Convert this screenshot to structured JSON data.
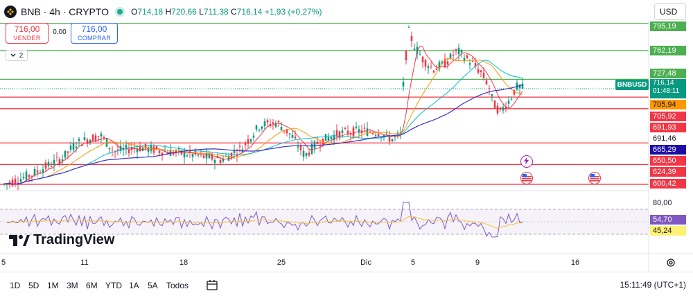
{
  "header": {
    "title": "BNB · 4h · CRYPTO",
    "ohlc": {
      "open_label": "O",
      "open": "714,18",
      "high_label": "H",
      "high": "720,66",
      "low_label": "L",
      "low": "711,38",
      "close_label": "C",
      "close": "716,14",
      "change": "+1,93 (+0,27%)"
    },
    "currency": "USD",
    "colors": {
      "up": "#089981",
      "down": "#f23645"
    }
  },
  "trade": {
    "sell_price": "716,00",
    "sell_label": "VENDER",
    "spread": "0,00",
    "buy_price": "716,00",
    "buy_label": "COMPRAR",
    "collapse_count": "2"
  },
  "price_scale": {
    "current_symbol": "BNBUSD",
    "current_price": "716,14",
    "countdown": "01:48:11",
    "labels": [
      {
        "text": "795,19",
        "kind": "green"
      },
      {
        "text": "762,19",
        "kind": "green"
      },
      {
        "text": "727,48",
        "kind": "green"
      },
      {
        "text": "705,94",
        "kind": "orange"
      },
      {
        "text": "705,92",
        "kind": "red"
      },
      {
        "text": "691,93",
        "kind": "red"
      },
      {
        "text": "691,46",
        "kind": "plain"
      },
      {
        "text": "665,29",
        "kind": "navy"
      },
      {
        "text": "650,50",
        "kind": "red"
      },
      {
        "text": "624,39",
        "kind": "red"
      },
      {
        "text": "600,42",
        "kind": "red"
      }
    ]
  },
  "rsi_scale": {
    "top": "80,00",
    "rsi_value": "54,70",
    "signal_value": "45,24"
  },
  "watermark": "TradingView",
  "time_axis": [
    "5",
    "11",
    "18",
    "25",
    "Dic",
    "5",
    "9",
    "16"
  ],
  "ranges": [
    "1D",
    "5D",
    "1M",
    "3M",
    "6M",
    "YTD",
    "1A",
    "5A",
    "Todos"
  ],
  "clock": "15:11:49 (UTC+1)",
  "icons": {
    "logo": "bnb-logo-icon",
    "live": "market-open-dot-icon",
    "collapse": "chevron-down-icon",
    "settings": "gear-icon",
    "calendar": "calendar-range-icon",
    "events": [
      "lightning-event-icon",
      "us-flag-event-icon",
      "us-flag-event-icon"
    ]
  },
  "chart_data": {
    "type": "candlestick",
    "timeframe": "4h",
    "y_range": [
      597,
      800
    ],
    "horizontal_levels": [
      795.19,
      762.19,
      727.48,
      705.92,
      691.93,
      650.5,
      624.39,
      600.42
    ],
    "moving_averages": [
      "fast",
      "medium",
      "slow"
    ],
    "rsi_bands": [
      80,
      70,
      50,
      30,
      20
    ]
  }
}
